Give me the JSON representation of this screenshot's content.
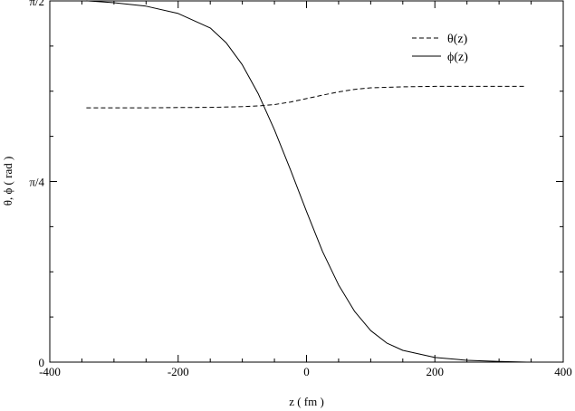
{
  "chart_data": {
    "type": "line",
    "title": "",
    "xlabel": "z  ( fm )",
    "ylabel": "θ, ϕ  ( rad )",
    "xlim": [
      -400,
      400
    ],
    "ylim": [
      0,
      1.5708
    ],
    "x_ticks": [
      {
        "value": -400,
        "label": "-400"
      },
      {
        "value": -200,
        "label": "-200"
      },
      {
        "value": 0,
        "label": "0"
      },
      {
        "value": 200,
        "label": "200"
      },
      {
        "value": 400,
        "label": "400"
      }
    ],
    "y_ticks": [
      {
        "value": 0,
        "label": "0"
      },
      {
        "value": 0.7854,
        "label": "π/4"
      },
      {
        "value": 1.5708,
        "label": "π/2"
      }
    ],
    "grid": false,
    "legend_position": "top-right",
    "series": [
      {
        "name": "θ(z)",
        "style": "dashed",
        "color": "#000000",
        "x": [
          -343,
          -300,
          -250,
          -200,
          -150,
          -100,
          -75,
          -50,
          -25,
          0,
          25,
          50,
          75,
          100,
          150,
          200,
          250,
          300,
          343
        ],
        "y": [
          1.106,
          1.106,
          1.106,
          1.107,
          1.108,
          1.111,
          1.114,
          1.12,
          1.131,
          1.146,
          1.161,
          1.175,
          1.186,
          1.193,
          1.197,
          1.199,
          1.199,
          1.199,
          1.199
        ]
      },
      {
        "name": "ϕ(z)",
        "style": "solid",
        "color": "#000000",
        "x": [
          -343,
          -300,
          -250,
          -200,
          -150,
          -125,
          -100,
          -75,
          -50,
          -25,
          0,
          25,
          50,
          75,
          100,
          125,
          150,
          200,
          250,
          300,
          343
        ],
        "y": [
          1.571,
          1.563,
          1.548,
          1.516,
          1.453,
          1.388,
          1.293,
          1.166,
          1.01,
          0.836,
          0.655,
          0.481,
          0.336,
          0.22,
          0.137,
          0.083,
          0.051,
          0.02,
          0.008,
          0.003,
          0.0
        ]
      }
    ]
  }
}
